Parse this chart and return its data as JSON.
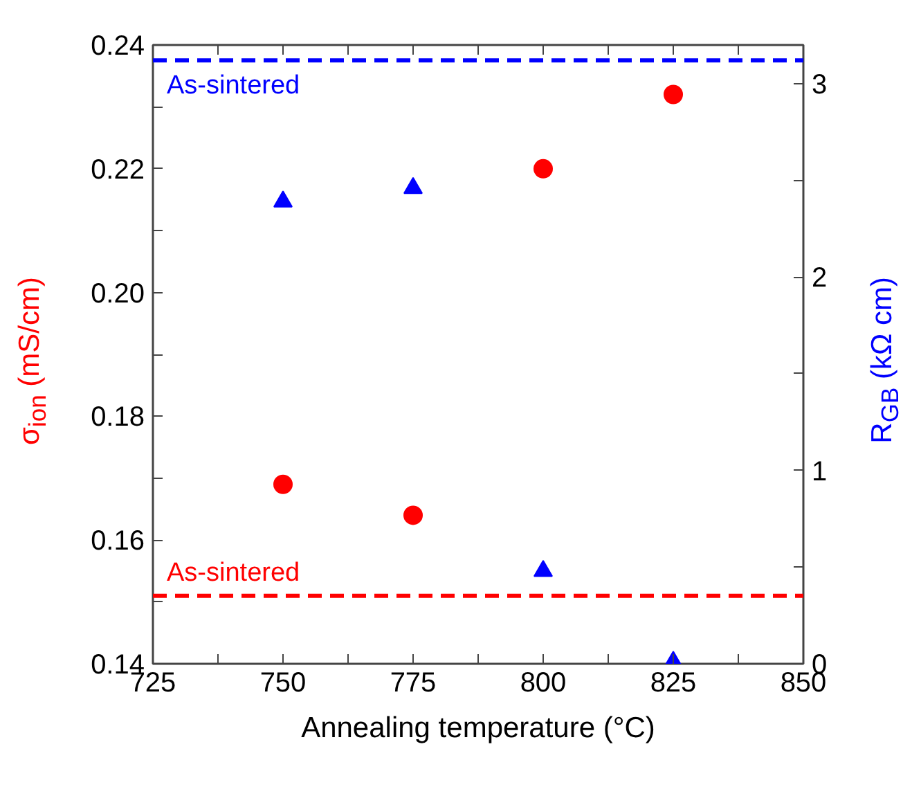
{
  "chart_data": {
    "type": "scatter",
    "xlabel": "Annealing temperature (°C)",
    "ylabel": "σ$_{ion}$ (mS/cm)",
    "y2label": "R$_{GB}$ (kΩ cm)",
    "x": [
      750,
      775,
      800,
      825
    ],
    "xlim": [
      725,
      850
    ],
    "xticks": [
      725,
      {
        "value": 737.5,
        "label": null
      },
      750,
      {
        "value": 762.5,
        "label": null
      },
      775,
      {
        "value": 787.5,
        "label": null
      },
      800,
      {
        "value": 812.5,
        "label": null
      },
      825,
      {
        "value": 837.5,
        "label": null
      },
      850
    ],
    "ylim": [
      0.14,
      0.24
    ],
    "yticks": [
      {
        "value": 0.14,
        "label": "0.14"
      },
      {
        "value": 0.15,
        "label": null
      },
      {
        "value": 0.16,
        "label": "0.16"
      },
      {
        "value": 0.17,
        "label": null
      },
      {
        "value": 0.18,
        "label": "0.18"
      },
      {
        "value": 0.19,
        "label": null
      },
      {
        "value": 0.2,
        "label": "0.20"
      },
      {
        "value": 0.21,
        "label": null
      },
      {
        "value": 0.22,
        "label": "0.22"
      },
      {
        "value": 0.23,
        "label": null
      },
      {
        "value": 0.24,
        "label": "0.24"
      }
    ],
    "y2lim": [
      0,
      3.2
    ],
    "y2ticks": [
      0,
      {
        "value": 0.5,
        "label": null
      },
      1,
      {
        "value": 1.5,
        "label": null
      },
      2,
      {
        "value": 2.5,
        "label": null
      },
      3
    ],
    "series": [
      {
        "color": "#ff0000",
        "marker": "circle",
        "values": [
          0.169,
          0.164,
          0.22,
          0.232
        ]
      },
      {
        "color": "#0000ff",
        "marker": "triangle",
        "axis": "y2",
        "values": [
          2.39,
          2.46,
          0.48,
          0.01
        ]
      }
    ],
    "ref_lines": [
      {
        "axis": "y",
        "value": 0.151,
        "label": "As-sintered",
        "color": "#ff0000",
        "line_style": "dashed"
      },
      {
        "axis": "y2",
        "value": 3.12,
        "label": "As-sintered",
        "color": "#0000ff",
        "line_style": "dashed"
      }
    ],
    "grid": false
  }
}
